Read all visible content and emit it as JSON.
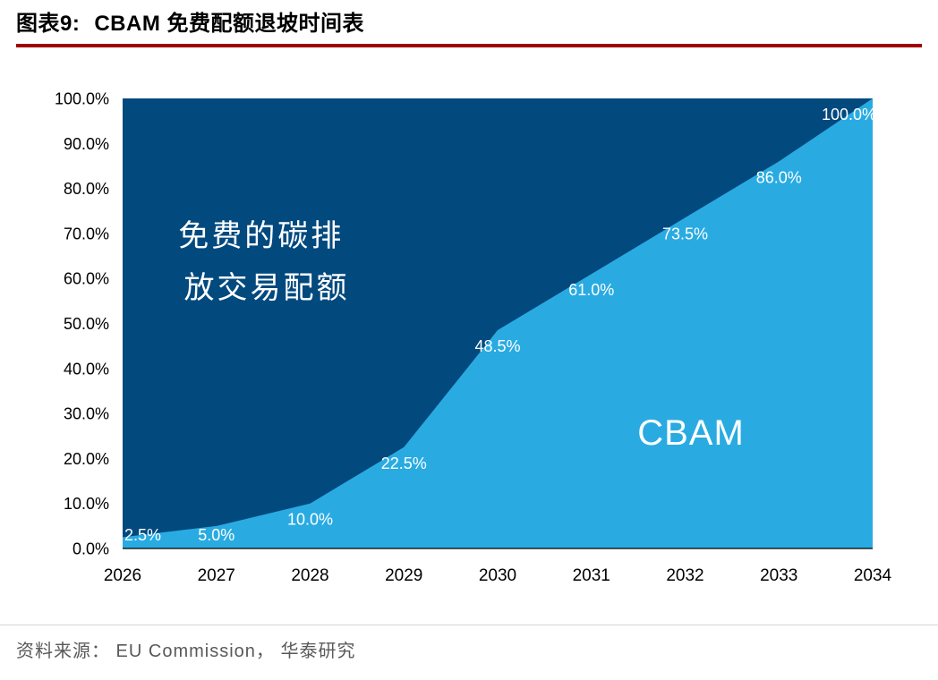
{
  "header": {
    "figure_label": "图表9:",
    "title": "CBAM 免费配额退坡时间表"
  },
  "chart_data": {
    "type": "area",
    "stacked": true,
    "categories": [
      "2026",
      "2027",
      "2028",
      "2029",
      "2030",
      "2031",
      "2032",
      "2033",
      "2034"
    ],
    "series": [
      {
        "name": "CBAM",
        "values": [
          2.5,
          5.0,
          10.0,
          22.5,
          48.5,
          61.0,
          73.5,
          86.0,
          100.0
        ],
        "color": "#29abe2"
      },
      {
        "name": "免费的碳排放交易配额",
        "values": [
          97.5,
          95.0,
          90.0,
          77.5,
          51.5,
          39.0,
          26.5,
          14.0,
          0.0
        ],
        "color": "#02497e"
      }
    ],
    "data_labels": [
      "2.5%",
      "5.0%",
      "10.0%",
      "22.5%",
      "48.5%",
      "61.0%",
      "73.5%",
      "86.0%",
      "100.0%"
    ],
    "y_ticks": [
      "0.0%",
      "10.0%",
      "20.0%",
      "30.0%",
      "40.0%",
      "50.0%",
      "60.0%",
      "70.0%",
      "80.0%",
      "90.0%",
      "100.0%"
    ],
    "ylim": [
      0,
      100
    ],
    "grid": false,
    "legend_position": "none",
    "annotations": {
      "free_allowance_line1": "免费的碳排",
      "free_allowance_line2": "放交易配额",
      "cbam_label": "CBAM"
    }
  },
  "footer": {
    "source": "资料来源： EU Commission， 华泰研究"
  },
  "colors": {
    "dark_area": "#02497e",
    "light_area": "#29abe2",
    "title_underline": "#a00000",
    "source_text": "#595959",
    "axis_line": "#000000"
  }
}
